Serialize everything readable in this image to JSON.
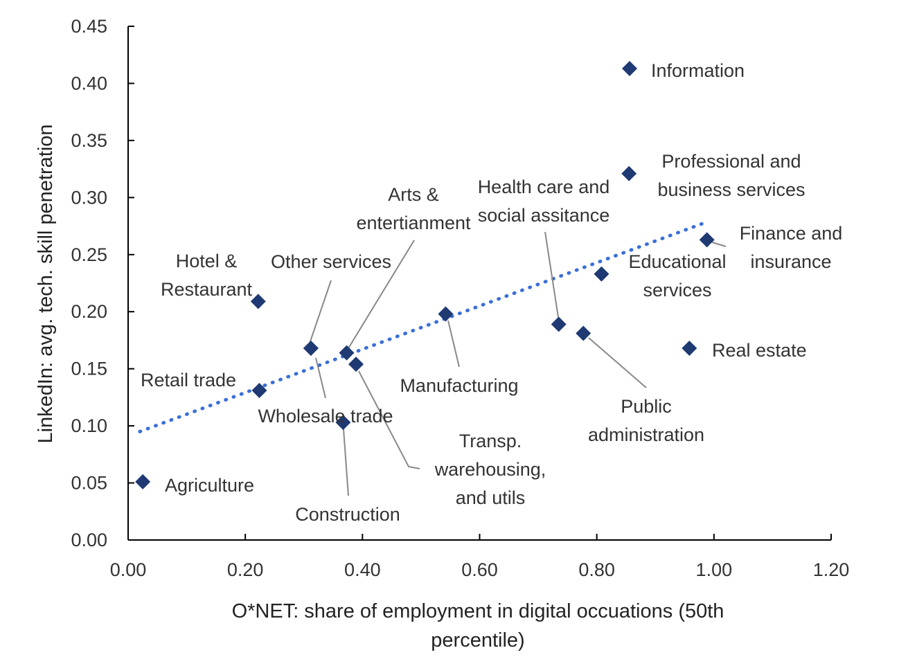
{
  "chart_data": {
    "type": "scatter",
    "xlabel": [
      "O*NET: share of employment in digital occuations (50th",
      "percentile)"
    ],
    "ylabel": "LinkedIn: avg. tech. skill penetration",
    "xlim": [
      0,
      1.2
    ],
    "ylim": [
      0,
      0.45
    ],
    "x_ticks": [
      "0.00",
      "0.20",
      "0.40",
      "0.60",
      "0.80",
      "1.00",
      "1.20"
    ],
    "y_ticks": [
      "0.00",
      "0.05",
      "0.10",
      "0.15",
      "0.20",
      "0.25",
      "0.30",
      "0.35",
      "0.40",
      "0.45"
    ],
    "marker_color": "#1f3a73",
    "trend_color": "#3a6fd8",
    "trendline": {
      "x": [
        0.02,
        0.99
      ],
      "y": [
        0.095,
        0.279
      ]
    },
    "points": [
      {
        "name": "Agriculture",
        "label_lines": [
          "Agriculture"
        ],
        "x": 0.025,
        "y": 0.051
      },
      {
        "name": "Hotel & Restaurant",
        "label_lines": [
          "Hotel &",
          "Restaurant"
        ],
        "x": 0.222,
        "y": 0.209
      },
      {
        "name": "Retail trade",
        "label_lines": [
          "Retail trade"
        ],
        "x": 0.224,
        "y": 0.131
      },
      {
        "name": "Other services",
        "label_lines": [
          "Other services"
        ],
        "x": 0.312,
        "y": 0.168
      },
      {
        "name": "Wholesale trade",
        "label_lines": [
          "Wholesale trade"
        ],
        "x": 0.312,
        "y": 0.168
      },
      {
        "name": "Construction",
        "label_lines": [
          "Construction"
        ],
        "x": 0.367,
        "y": 0.103
      },
      {
        "name": "Arts & entertianment",
        "label_lines": [
          "Arts &",
          "entertianment"
        ],
        "x": 0.373,
        "y": 0.164
      },
      {
        "name": "Transp. warehousing, and utils",
        "label_lines": [
          "Transp.",
          "warehousing,",
          "and utils"
        ],
        "x": 0.389,
        "y": 0.154
      },
      {
        "name": "Manufacturing",
        "label_lines": [
          "Manufacturing"
        ],
        "x": 0.542,
        "y": 0.198
      },
      {
        "name": "Health care and social assitance",
        "label_lines": [
          "Health care and",
          "social assitance"
        ],
        "x": 0.735,
        "y": 0.189
      },
      {
        "name": "Public administration",
        "label_lines": [
          "Public",
          "administration"
        ],
        "x": 0.777,
        "y": 0.181
      },
      {
        "name": "Educational services",
        "label_lines": [
          "Educational",
          "services"
        ],
        "x": 0.808,
        "y": 0.233
      },
      {
        "name": "Information",
        "label_lines": [
          "Information"
        ],
        "x": 0.856,
        "y": 0.413
      },
      {
        "name": "Professional and business services",
        "label_lines": [
          "Professional and",
          "business services"
        ],
        "x": 0.855,
        "y": 0.321
      },
      {
        "name": "Real estate",
        "label_lines": [
          "Real estate"
        ],
        "x": 0.958,
        "y": 0.168
      },
      {
        "name": "Finance and insurance",
        "label_lines": [
          "Finance and",
          "insurance"
        ],
        "x": 0.988,
        "y": 0.263
      }
    ]
  }
}
